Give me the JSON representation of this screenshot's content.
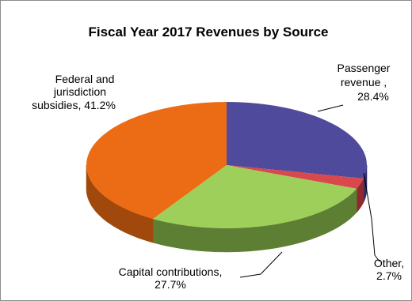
{
  "chart_data": {
    "type": "pie",
    "title": "Fiscal Year 2017 Revenues by Source",
    "slices": [
      {
        "label_lines": [
          "Passenger",
          "revenue ,",
          "28.4%"
        ],
        "value": 28.4,
        "color": "#4f4a9b",
        "side": "#2e2a66"
      },
      {
        "label_lines": [
          "Other,",
          "2.7%"
        ],
        "value": 2.7,
        "color": "#d9484c",
        "side": "#8e2a2d"
      },
      {
        "label_lines": [
          "Capital contributions,",
          "27.7%"
        ],
        "value": 27.7,
        "color": "#9fcf5b",
        "side": "#5d7f33"
      },
      {
        "label_lines": [
          "Federal and",
          "jurisdiction",
          "subsidies, 41.2%"
        ],
        "value": 41.2,
        "color": "#ec6c16",
        "side": "#a1480c"
      }
    ]
  }
}
